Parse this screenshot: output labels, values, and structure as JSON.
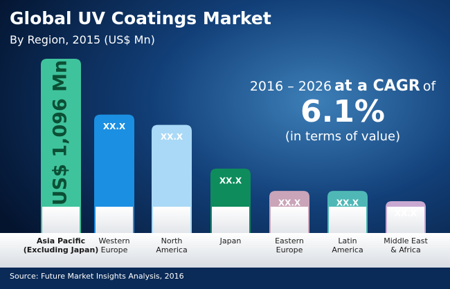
{
  "chart_data": {
    "type": "bar",
    "title": "Global UV Coatings Market",
    "subtitle": "By Region, 2015 (US$ Mn)",
    "categories": [
      "Asia Pacific\n(Excluding Japan)",
      "Western\nEurope",
      "North\nAmerica",
      "Japan",
      "Eastern\nEurope",
      "Latin\nAmerica",
      "Middle East\n& Africa"
    ],
    "values": [
      1096,
      745,
      680,
      405,
      265,
      265,
      200
    ],
    "value_labels": [
      "US$ 1,096 Mn",
      "XX.X",
      "XX.X",
      "XX.X",
      "XX.X",
      "XX.X",
      "XX.X"
    ],
    "colors": [
      "#3fc39c",
      "#1b8fe2",
      "#a9d9f6",
      "#0e8c5c",
      "#caa4b8",
      "#4fb8b6",
      "#c9a9d1"
    ],
    "annotation": {
      "period": "2016 – 2026",
      "emphasis": "at a CAGR",
      "suffix": "of",
      "value": "6.1%",
      "note": "(in terms of value)"
    },
    "source": "Source: Future Market Insights Analysis, 2016"
  }
}
